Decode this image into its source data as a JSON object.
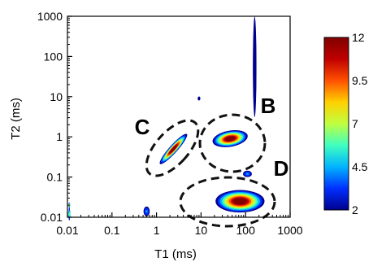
{
  "chart_data": {
    "type": "heatmap",
    "title": "",
    "xlabel": "T1 (ms)",
    "ylabel": "T2 (ms)",
    "x_scale": "log",
    "y_scale": "log",
    "xlim": [
      0.01,
      1000
    ],
    "ylim": [
      0.01,
      1000
    ],
    "x_ticks": [
      "0.01",
      "0.1",
      "1",
      "10",
      "100",
      "1000"
    ],
    "y_ticks": [
      "0.01",
      "0.1",
      "1",
      "10",
      "100",
      "1000"
    ],
    "colorbar": {
      "min": 2,
      "max": 12,
      "tick_labels": [
        "12",
        "9.5",
        "7",
        "4.5",
        "2"
      ],
      "colors": [
        "#00008f",
        "#0030ff",
        "#00b4ff",
        "#40ffbf",
        "#c0ff40",
        "#ffd000",
        "#ff5000",
        "#c00000",
        "#800000"
      ]
    },
    "peaks": [
      {
        "x": 0.011,
        "y": 0.012,
        "rx": 0.015,
        "ry": 0.16,
        "angle": 0,
        "intensity": 6
      },
      {
        "x": 0.011,
        "y": 0.02,
        "rx": 0.012,
        "ry": 0.06,
        "angle": 0,
        "intensity": 7
      },
      {
        "x": 0.6,
        "y": 0.014,
        "rx": 0.07,
        "ry": 0.12,
        "angle": 0,
        "intensity": 4
      },
      {
        "x": 2.4,
        "y": 0.5,
        "rx": 0.45,
        "ry": 0.1,
        "angle": -48,
        "intensity": 12
      },
      {
        "x": 45,
        "y": 0.9,
        "rx": 0.4,
        "ry": 0.2,
        "angle": -10,
        "intensity": 12
      },
      {
        "x": 110,
        "y": 0.12,
        "rx": 0.1,
        "ry": 0.08,
        "angle": 0,
        "intensity": 4
      },
      {
        "x": 75,
        "y": 0.025,
        "rx": 0.55,
        "ry": 0.28,
        "angle": 0,
        "intensity": 12
      },
      {
        "x": 160,
        "y": 55,
        "rx": 0.04,
        "ry": 1.25,
        "angle": 0,
        "intensity": 2.5
      },
      {
        "x": 9,
        "y": 9,
        "rx": 0.03,
        "ry": 0.05,
        "angle": 0,
        "intensity": 2.5
      }
    ],
    "annotations": [
      {
        "label": "C",
        "x": 2.2,
        "y": 0.5
      },
      {
        "label": "B",
        "x": 55,
        "y": 0.9
      },
      {
        "label": "D",
        "x": 60,
        "y": 0.025
      }
    ]
  }
}
